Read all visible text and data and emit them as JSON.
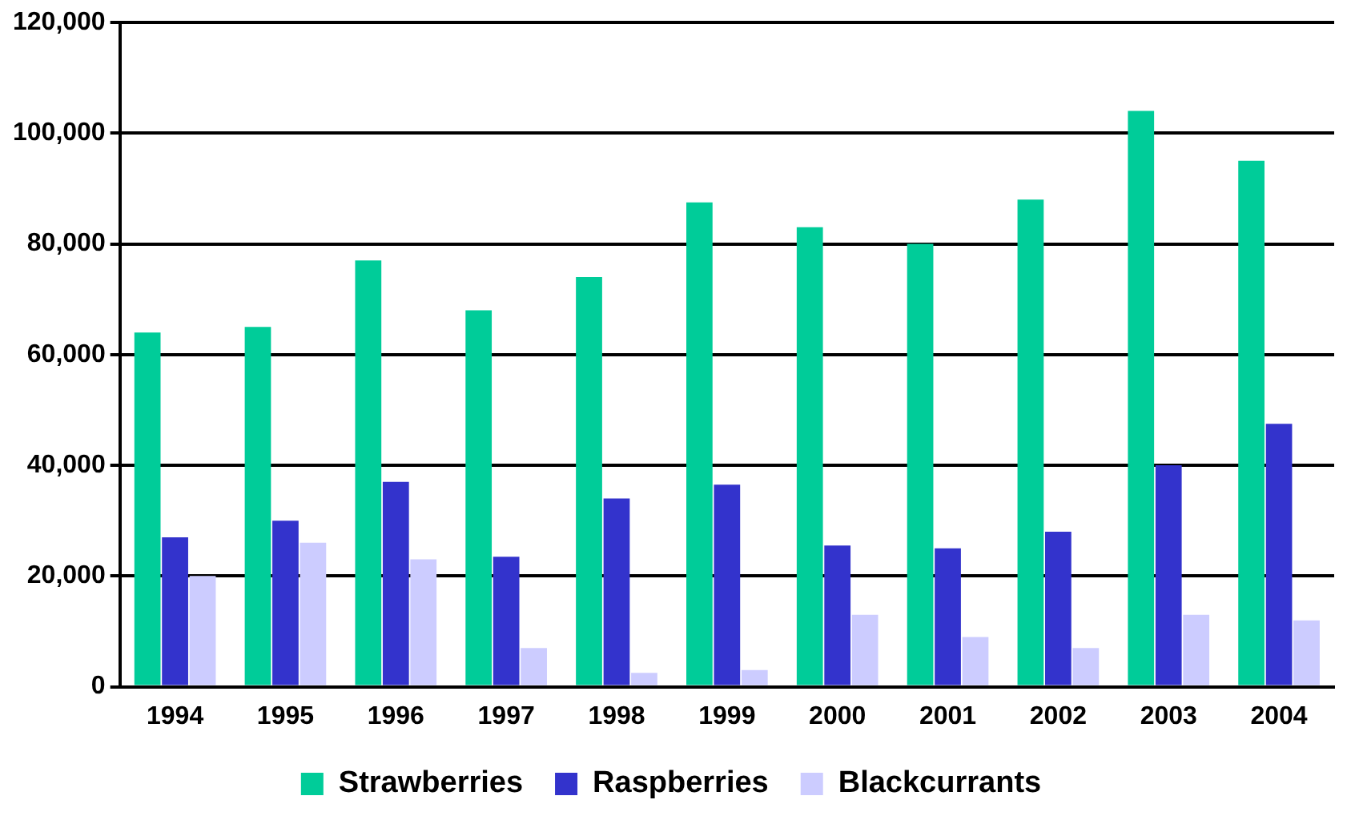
{
  "chart_data": {
    "type": "bar",
    "categories": [
      "1994",
      "1995",
      "1996",
      "1997",
      "1998",
      "1999",
      "2000",
      "2001",
      "2002",
      "2003",
      "2004"
    ],
    "series": [
      {
        "name": "Strawberries",
        "color": "#00cc99",
        "values": [
          64000,
          65000,
          77000,
          68000,
          74000,
          87500,
          83000,
          80000,
          88000,
          104000,
          95000
        ]
      },
      {
        "name": "Raspberries",
        "color": "#3333cc",
        "values": [
          27000,
          30000,
          37000,
          23500,
          34000,
          36500,
          25500,
          25000,
          28000,
          40000,
          47500
        ]
      },
      {
        "name": "Blackcurrants",
        "color": "#ccccff",
        "values": [
          20000,
          26000,
          23000,
          7000,
          2500,
          3000,
          13000,
          9000,
          7000,
          13000,
          12000
        ]
      }
    ],
    "ylim": [
      0,
      120000
    ],
    "yticks": [
      0,
      {
        "value": 20000,
        "label": "20,000"
      },
      {
        "value": 40000,
        "label": "40,000"
      },
      {
        "value": 60000,
        "label": "60,000"
      },
      {
        "value": 80000,
        "label": "80,000"
      },
      {
        "value": 100000,
        "label": "100,000"
      },
      {
        "value": 120000,
        "label": "120,000"
      }
    ],
    "grid": "y",
    "legend": "bottom"
  }
}
